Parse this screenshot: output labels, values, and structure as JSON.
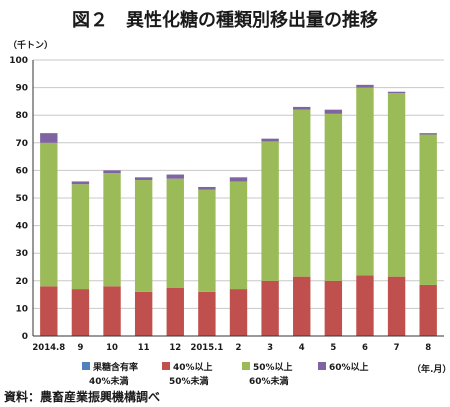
{
  "title": "図２　異性化糖の種類別移出量の推移",
  "source": "資料：農畜産業振興機構調べ",
  "chart_data": {
    "type": "bar",
    "stacked": true,
    "ylabel": "（千トン）",
    "xlabel": "（年.月）",
    "ylim": [
      0,
      100
    ],
    "yticks": [
      0,
      10,
      20,
      30,
      40,
      50,
      60,
      70,
      80,
      90,
      100
    ],
    "grid": true,
    "legend_position": "bottom",
    "categories": [
      "2014.8",
      "9",
      "10",
      "11",
      "12",
      "2015.1",
      "2",
      "3",
      "4",
      "5",
      "6",
      "7",
      "8"
    ],
    "series": [
      {
        "name": "果糖含有率 40%未満",
        "color": "#4f81bd",
        "values": [
          0,
          0,
          0,
          0,
          0,
          0,
          0,
          0,
          0,
          0,
          0,
          0,
          0
        ]
      },
      {
        "name": "40%以上 50%未満",
        "color": "#c0504d",
        "values": [
          18,
          17,
          18,
          16,
          17.5,
          16,
          17,
          20,
          21.5,
          20,
          22,
          21.5,
          18.5
        ]
      },
      {
        "name": "50%以上 60%未満",
        "color": "#9bbb59",
        "values": [
          52,
          38,
          41,
          40.5,
          39.5,
          37,
          39,
          50.5,
          60.5,
          60.5,
          68,
          66.5,
          54.5
        ]
      },
      {
        "name": "60%以上",
        "color": "#8064a2",
        "values": [
          3.5,
          1,
          1,
          1,
          1.5,
          1,
          1.5,
          1,
          1,
          1.5,
          1,
          0.5,
          0.5
        ]
      }
    ],
    "legend": [
      {
        "line1": "果糖含有率",
        "line2": "40%未満",
        "color": "#4f81bd"
      },
      {
        "line1": "40%以上",
        "line2": "50%未満",
        "color": "#c0504d"
      },
      {
        "line1": "50%以上",
        "line2": "60%未満",
        "color": "#9bbb59"
      },
      {
        "line1": "60%以上",
        "line2": "",
        "color": "#8064a2"
      }
    ]
  }
}
